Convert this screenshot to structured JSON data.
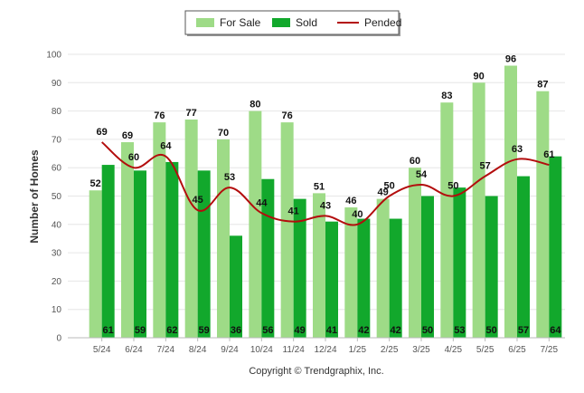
{
  "chart_data": {
    "type": "bar",
    "categories": [
      "5/24",
      "6/24",
      "7/24",
      "8/24",
      "9/24",
      "10/24",
      "11/24",
      "12/24",
      "1/25",
      "2/25",
      "3/25",
      "4/25",
      "5/25",
      "6/25",
      "7/25"
    ],
    "series": [
      {
        "name": "For Sale",
        "type": "bar",
        "color": "#9edb87",
        "values": [
          52,
          69,
          76,
          77,
          70,
          80,
          76,
          51,
          46,
          49,
          60,
          83,
          90,
          96,
          87
        ]
      },
      {
        "name": "Sold",
        "type": "bar",
        "color": "#12a82c",
        "values": [
          61,
          59,
          62,
          59,
          36,
          56,
          49,
          41,
          42,
          42,
          50,
          53,
          50,
          57,
          64
        ]
      },
      {
        "name": "Pended",
        "type": "line",
        "color": "#b30d0d",
        "values": [
          69,
          60,
          64,
          45,
          53,
          44,
          41,
          43,
          40,
          50,
          54,
          50,
          57,
          63,
          61
        ]
      }
    ],
    "ylabel": "Number of Homes",
    "xlabel": "",
    "ylim": [
      0,
      100
    ],
    "yticks": [
      0,
      10,
      20,
      30,
      40,
      50,
      60,
      70,
      80,
      90,
      100
    ],
    "grid": true,
    "legend_position": "top-center"
  },
  "footer": {
    "copyright": "Copyright © Trendgraphix, Inc."
  }
}
